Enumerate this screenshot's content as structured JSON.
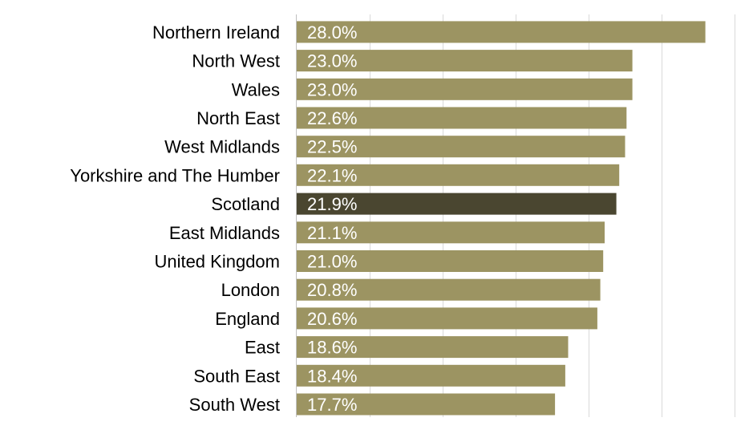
{
  "chart_data": {
    "type": "bar",
    "orientation": "horizontal",
    "title": "",
    "xlabel": "",
    "ylabel": "",
    "categories": [
      "Northern Ireland",
      "North West",
      "Wales",
      "North East",
      "West Midlands",
      "Yorkshire and The Humber",
      "Scotland",
      "East Midlands",
      "United Kingdom",
      "London",
      "England",
      "East",
      "South East",
      "South West"
    ],
    "values": [
      28.0,
      23.0,
      23.0,
      22.6,
      22.5,
      22.1,
      21.9,
      21.1,
      21.0,
      20.8,
      20.6,
      18.6,
      18.4,
      17.7
    ],
    "value_labels": [
      "28.0%",
      "23.0%",
      "23.0%",
      "22.6%",
      "22.5%",
      "22.1%",
      "21.9%",
      "21.1%",
      "21.0%",
      "20.8%",
      "20.6%",
      "18.6%",
      "18.4%",
      "17.7%"
    ],
    "highlight_category": "Scotland",
    "xlim": [
      0,
      30
    ],
    "grid": true,
    "legend": "none",
    "colors": {
      "bar": "#9c9462",
      "highlight": "#4a4630",
      "grid": "#d9d9d9",
      "axis": "#bfbfbf"
    }
  }
}
